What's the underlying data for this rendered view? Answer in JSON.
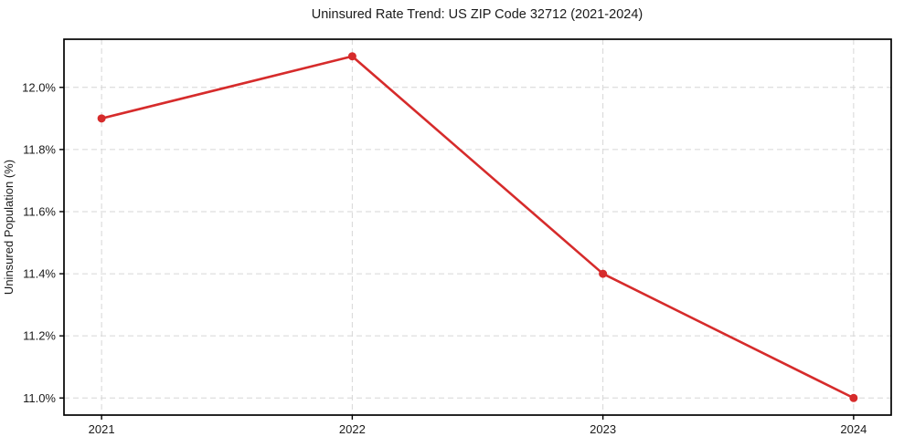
{
  "chart_data": {
    "type": "line",
    "title": "Uninsured Rate Trend: US ZIP Code 32712 (2021-2024)",
    "xlabel": "",
    "ylabel": "Uninsured Population (%)",
    "x": [
      2021,
      2022,
      2023,
      2024
    ],
    "series": [
      {
        "name": "uninsured-rate",
        "values": [
          11.9,
          12.1,
          11.4,
          11.0
        ]
      }
    ],
    "x_tick_labels": [
      "2021",
      "2022",
      "2023",
      "2024"
    ],
    "y_ticks": [
      11.0,
      11.2,
      11.4,
      11.6,
      11.8,
      12.0
    ],
    "y_tick_labels": [
      "11.0%",
      "11.2%",
      "11.4%",
      "11.6%",
      "11.8%",
      "12.0%"
    ],
    "xlim": [
      2020.85,
      2024.15
    ],
    "ylim": [
      10.945,
      12.155
    ],
    "grid": true,
    "legend_position": "none",
    "colors": {
      "line": "#d62b2b",
      "marker": "#d62b2b",
      "grid": "#d6d6d6",
      "axis": "#000000",
      "background": "#ffffff",
      "text": "#1a1a1a"
    }
  }
}
